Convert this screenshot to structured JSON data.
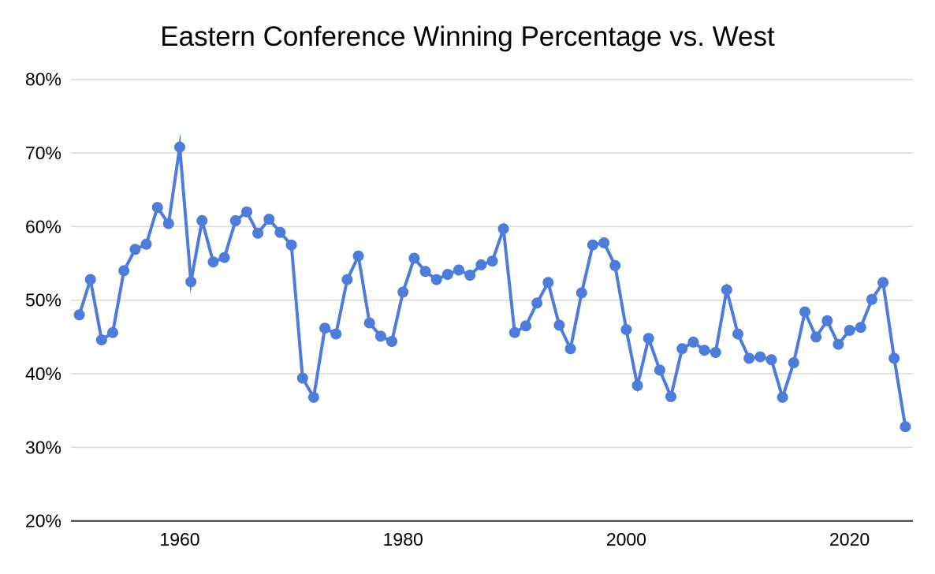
{
  "page": {
    "title": "Eastern Conference Winning Percentage vs. West"
  },
  "colors": {
    "series_blue": "#4d7cdb",
    "gridline": "#d9d9d9",
    "axis_line": "#333333",
    "label_text": "#000000",
    "background": "#ffffff"
  },
  "chart_data": {
    "type": "line",
    "title": "Eastern Conference Winning Percentage vs. West",
    "legend": "none",
    "grid": true,
    "marker": "circle",
    "xlabel": "",
    "ylabel": "",
    "x_axis": {
      "range": [
        1950.3,
        2025.8
      ],
      "ticks": [
        {
          "label": "1960",
          "value": 1960
        },
        {
          "label": "1980",
          "value": 1980
        },
        {
          "label": "2000",
          "value": 2000
        },
        {
          "label": "2020",
          "value": 2020
        }
      ]
    },
    "y_axis": {
      "range": [
        20,
        80
      ],
      "unit": "percent",
      "ticks": [
        {
          "label": "80%",
          "value": 80
        },
        {
          "label": "70%",
          "value": 70
        },
        {
          "label": "60%",
          "value": 60
        },
        {
          "label": "50%",
          "value": 50
        },
        {
          "label": "40%",
          "value": 40
        },
        {
          "label": "30%",
          "value": 30
        },
        {
          "label": "20%",
          "value": 20
        }
      ]
    },
    "series": [
      {
        "name": "Eastern Conference winning percentage vs. West",
        "color": "#4d7cdb",
        "x": [
          1951,
          1952,
          1953,
          1954,
          1955,
          1956,
          1957,
          1958,
          1959,
          1960,
          1961,
          1962,
          1963,
          1964,
          1965,
          1966,
          1967,
          1968,
          1969,
          1970,
          1971,
          1972,
          1973,
          1974,
          1975,
          1976,
          1977,
          1978,
          1979,
          1980,
          1981,
          1982,
          1983,
          1984,
          1985,
          1986,
          1987,
          1988,
          1989,
          1990,
          1991,
          1992,
          1993,
          1994,
          1995,
          1996,
          1997,
          1998,
          1999,
          2000,
          2001,
          2002,
          2003,
          2004,
          2005,
          2006,
          2007,
          2008,
          2009,
          2010,
          2011,
          2012,
          2013,
          2014,
          2015,
          2016,
          2017,
          2018,
          2019,
          2020,
          2021,
          2022,
          2023,
          2024,
          2025
        ],
        "values": [
          48.0,
          52.8,
          44.6,
          45.6,
          54.0,
          56.9,
          57.6,
          62.6,
          60.4,
          70.8,
          52.5,
          60.8,
          55.2,
          55.8,
          60.8,
          62.0,
          59.1,
          61.0,
          59.2,
          57.5,
          39.4,
          36.8,
          46.2,
          45.4,
          52.8,
          56.0,
          46.9,
          45.1,
          44.4,
          51.1,
          55.7,
          53.9,
          52.8,
          53.5,
          54.1,
          53.4,
          54.8,
          55.3,
          59.7,
          45.6,
          46.5,
          49.6,
          52.4,
          46.6,
          43.4,
          51.0,
          57.5,
          57.8,
          54.7,
          46.0,
          38.4,
          44.8,
          40.5,
          36.9,
          43.4,
          44.3,
          43.2,
          42.9,
          51.4,
          45.4,
          42.1,
          42.3,
          41.9,
          36.8,
          41.5,
          48.4,
          45.0,
          47.2,
          44.0,
          45.9,
          46.3,
          50.1,
          52.4,
          42.1,
          32.8
        ]
      }
    ]
  }
}
